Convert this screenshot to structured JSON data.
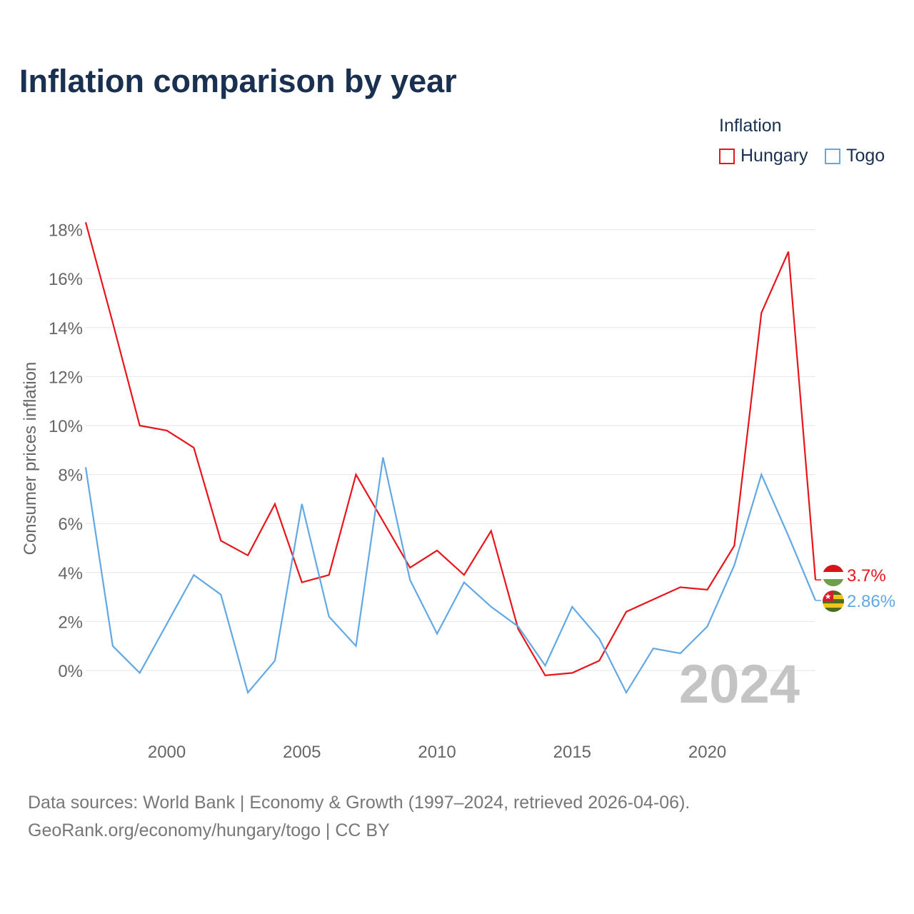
{
  "title": "Inflation comparison by year",
  "legend": {
    "title": "Inflation",
    "items": [
      {
        "label": "Hungary",
        "color": "#e8151b"
      },
      {
        "label": "Togo",
        "color": "#62a8e5"
      }
    ]
  },
  "footer": {
    "line1": "Data sources: World Bank | Economy & Growth (1997–2024, retrieved 2026-04-06).",
    "line2": "GeoRank.org/economy/hungary/togo | CC BY"
  },
  "chart_data": {
    "type": "line",
    "title": "Inflation comparison by year",
    "xlabel": "",
    "ylabel": "Consumer prices inflation",
    "xlim": [
      1997,
      2024
    ],
    "ylim": [
      -2,
      18.5
    ],
    "grid": true,
    "watermark": "2024",
    "x_ticks": [
      2000,
      2005,
      2010,
      2015,
      2020
    ],
    "x_tick_labels": [
      "2000",
      "2005",
      "2010",
      "2015",
      "2020"
    ],
    "y_ticks": [
      0,
      2,
      4,
      6,
      8,
      10,
      12,
      14,
      16,
      18
    ],
    "y_tick_labels": [
      "0%",
      "2%",
      "4%",
      "6%",
      "8%",
      "10%",
      "12%",
      "14%",
      "16%",
      "18%"
    ],
    "x": [
      1997,
      1998,
      1999,
      2000,
      2001,
      2002,
      2003,
      2004,
      2005,
      2006,
      2007,
      2008,
      2009,
      2010,
      2011,
      2012,
      2013,
      2014,
      2015,
      2016,
      2017,
      2018,
      2019,
      2020,
      2021,
      2022,
      2023,
      2024
    ],
    "series": [
      {
        "name": "Hungary",
        "color": "#e8151b",
        "end_label": "3.7%",
        "values": [
          18.3,
          14.2,
          10.0,
          9.8,
          9.1,
          5.3,
          4.7,
          6.8,
          3.6,
          3.9,
          8.0,
          6.1,
          4.2,
          4.9,
          3.9,
          5.7,
          1.7,
          -0.2,
          -0.1,
          0.4,
          2.4,
          2.9,
          3.4,
          3.3,
          5.1,
          14.6,
          17.1,
          3.7
        ]
      },
      {
        "name": "Togo",
        "color": "#62a8e5",
        "end_label": "2.86%",
        "values": [
          8.3,
          1.0,
          -0.1,
          1.9,
          3.9,
          3.1,
          -0.9,
          0.4,
          6.8,
          2.2,
          1.0,
          8.7,
          3.7,
          1.5,
          3.6,
          2.6,
          1.8,
          0.2,
          2.6,
          1.3,
          -0.9,
          0.9,
          0.7,
          1.8,
          4.3,
          8.0,
          5.5,
          2.86
        ]
      }
    ]
  }
}
